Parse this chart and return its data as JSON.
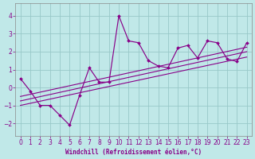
{
  "xlabel": "Windchill (Refroidissement éolien,°C)",
  "bg_color": "#c0e8e8",
  "plot_bg_color": "#c0e8e8",
  "grid_color": "#98c8c8",
  "line_color": "#880088",
  "xlim": [
    -0.5,
    23.5
  ],
  "ylim": [
    -2.7,
    4.7
  ],
  "yticks": [
    -2,
    -1,
    0,
    1,
    2,
    3,
    4
  ],
  "xticks": [
    0,
    1,
    2,
    3,
    4,
    5,
    6,
    7,
    8,
    9,
    10,
    11,
    12,
    13,
    14,
    15,
    16,
    17,
    18,
    19,
    20,
    21,
    22,
    23
  ],
  "x": [
    0,
    1,
    2,
    3,
    4,
    5,
    6,
    7,
    8,
    9,
    10,
    11,
    12,
    13,
    14,
    15,
    16,
    17,
    18,
    19,
    20,
    21,
    22,
    23
  ],
  "y": [
    0.5,
    -0.2,
    -1.0,
    -1.0,
    -1.55,
    -2.1,
    -0.45,
    1.1,
    0.3,
    0.3,
    4.0,
    2.6,
    2.5,
    1.5,
    1.2,
    1.1,
    2.2,
    2.35,
    1.65,
    2.6,
    2.5,
    1.6,
    1.45,
    2.5
  ],
  "reg_lines": [
    {
      "x0": 0,
      "x1": 23,
      "y0": -1.0,
      "y1": 1.7
    },
    {
      "x0": 0,
      "x1": 23,
      "y0": -0.75,
      "y1": 2.0
    },
    {
      "x0": 0,
      "x1": 23,
      "y0": -0.5,
      "y1": 2.25
    }
  ]
}
